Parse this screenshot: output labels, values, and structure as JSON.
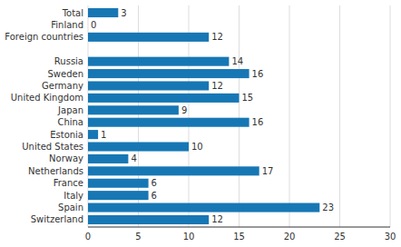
{
  "chart_data": {
    "type": "bar",
    "orientation": "horizontal",
    "categories": [
      "Switzerland",
      "Spain",
      "Italy",
      "France",
      "Netherlands",
      "Norway",
      "United States",
      "Estonia",
      "China",
      "Japan",
      "United Kingdom",
      "Germany",
      "Sweden",
      "Russia",
      null,
      "Foreign countries",
      "Finland",
      "Total"
    ],
    "values": [
      12,
      23,
      6,
      6,
      17,
      4,
      10,
      1,
      16,
      9,
      15,
      12,
      16,
      14,
      0,
      12,
      0,
      3
    ],
    "color": "#1777b4",
    "xlim": [
      0,
      30
    ],
    "xticks": [
      0,
      5,
      10,
      15,
      20,
      25,
      30
    ],
    "grid": true,
    "data_labels": true
  }
}
